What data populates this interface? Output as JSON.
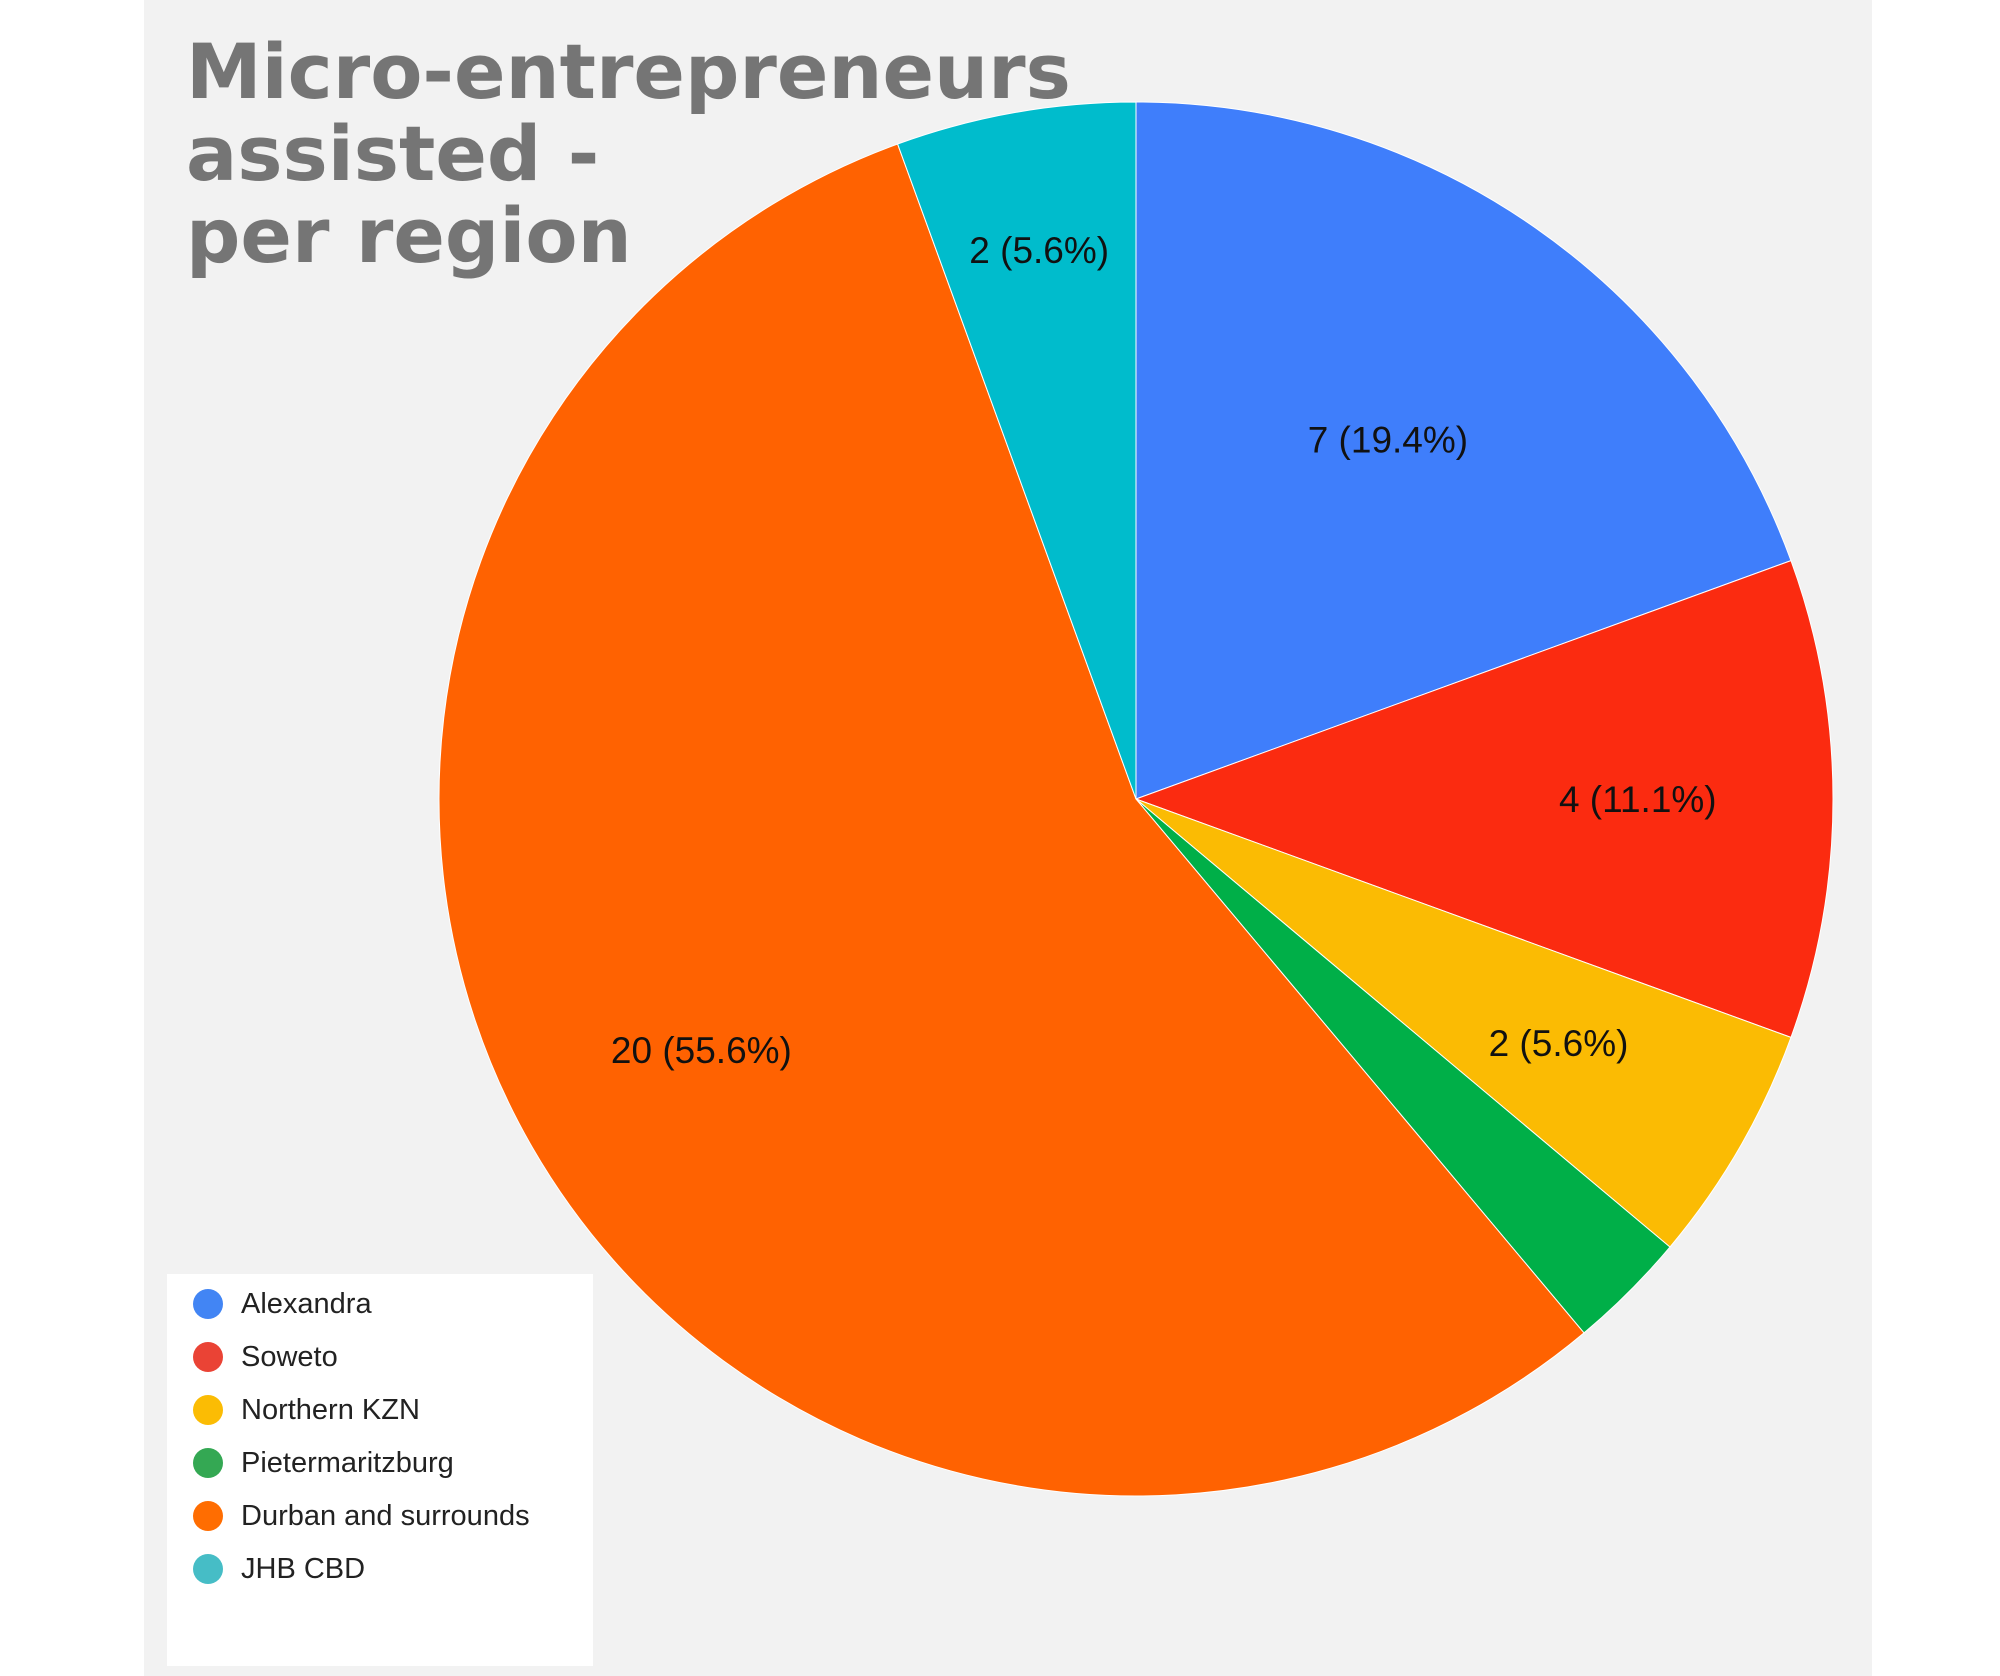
{
  "chart_data": {
    "type": "pie",
    "title_lines": [
      "Micro-entrepreneurs",
      "assisted -",
      "per region"
    ],
    "legend_position": "bottom-left",
    "slices": [
      {
        "name": "Alexandra",
        "value": 7,
        "label": "7 (19.4%)",
        "color": "#4285f4"
      },
      {
        "name": "Soweto",
        "value": 4,
        "label": "4 (11.1%)",
        "color": "#ea4335"
      },
      {
        "name": "Northern KZN",
        "value": 2,
        "label": "2 (5.6%)",
        "color": "#fbbc04"
      },
      {
        "name": "Pietermaritzburg",
        "value": 1,
        "label": "",
        "color": "#34a853"
      },
      {
        "name": "Durban and surrounds",
        "value": 20,
        "label": "20 (55.6%)",
        "color": "#ff6d01"
      },
      {
        "name": "JHB CBD",
        "value": 2,
        "label": "2 (5.6%)",
        "color": "#46bdc6"
      }
    ],
    "slice_render_colors": [
      "#3f7efb",
      "#fb2b10",
      "#fbbb03",
      "#00af48",
      "#ff6201",
      "#00bccc"
    ]
  }
}
